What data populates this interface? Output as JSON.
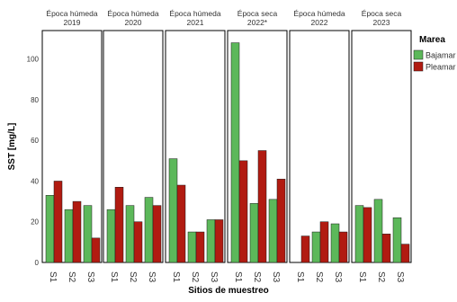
{
  "chart_data": {
    "type": "bar",
    "xlabel": "Sitios de muestreo",
    "ylabel": "SST [mg/L]",
    "ylim": [
      0,
      114
    ],
    "yticks": [
      0,
      20,
      40,
      60,
      80,
      100
    ],
    "grid": false,
    "legend": {
      "title": "Marea",
      "placement": "right",
      "entries": [
        "Bajamar",
        "Pleamar"
      ]
    },
    "colors": {
      "Bajamar": "#5cb85a",
      "Pleamar": "#b11b11"
    },
    "categories": [
      "S1",
      "S2",
      "S3"
    ],
    "panels": [
      {
        "title": [
          "Época húmeda",
          "2019"
        ],
        "series": [
          {
            "name": "Bajamar",
            "values": [
              33,
              26,
              28
            ]
          },
          {
            "name": "Pleamar",
            "values": [
              40,
              30,
              12
            ]
          }
        ]
      },
      {
        "title": [
          "Época húmeda",
          "2020"
        ],
        "series": [
          {
            "name": "Bajamar",
            "values": [
              26,
              28,
              32
            ]
          },
          {
            "name": "Pleamar",
            "values": [
              37,
              20,
              28
            ]
          }
        ]
      },
      {
        "title": [
          "Época húmeda",
          "2021"
        ],
        "series": [
          {
            "name": "Bajamar",
            "values": [
              51,
              15,
              21
            ]
          },
          {
            "name": "Pleamar",
            "values": [
              38,
              15,
              21
            ]
          }
        ]
      },
      {
        "title": [
          "Época seca",
          "2022*"
        ],
        "series": [
          {
            "name": "Bajamar",
            "values": [
              108,
              29,
              31
            ]
          },
          {
            "name": "Pleamar",
            "values": [
              50,
              55,
              41
            ]
          }
        ]
      },
      {
        "title": [
          "Época húmeda",
          "2022"
        ],
        "series": [
          {
            "name": "Bajamar",
            "values": [
              null,
              15,
              19
            ]
          },
          {
            "name": "Pleamar",
            "values": [
              13,
              20,
              15
            ]
          }
        ]
      },
      {
        "title": [
          "Época seca",
          "2023"
        ],
        "series": [
          {
            "name": "Bajamar",
            "values": [
              28,
              31,
              22
            ]
          },
          {
            "name": "Pleamar",
            "values": [
              27,
              14,
              9
            ]
          }
        ]
      }
    ]
  }
}
